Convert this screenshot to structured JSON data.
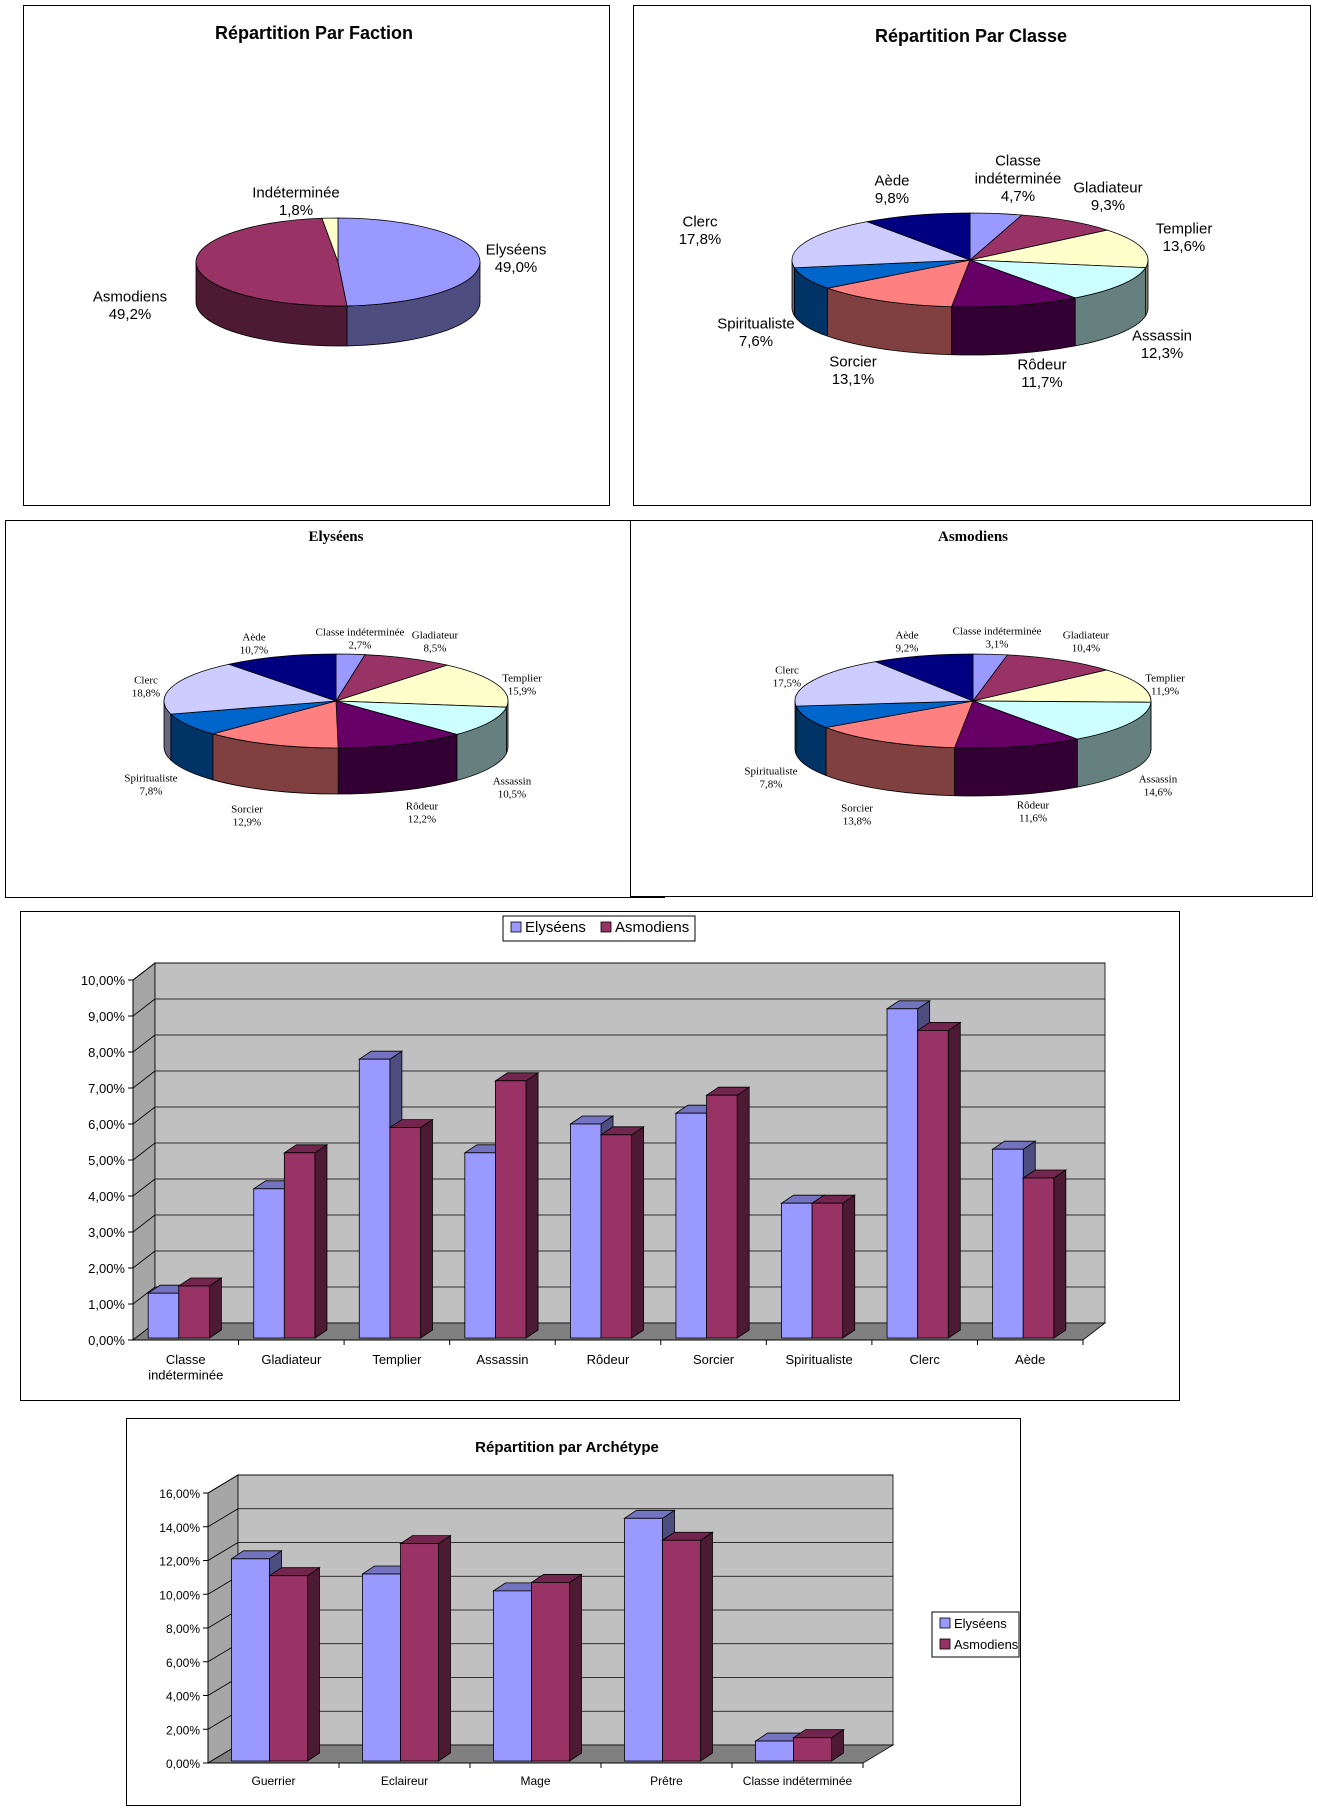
{
  "chart_data": [
    {
      "id": "faction",
      "type": "pie",
      "title": "Répartition Par Faction",
      "slices": [
        {
          "name": "Elyséens",
          "pct_label": "49,0%",
          "value": 49.0
        },
        {
          "name": "Asmodiens",
          "pct_label": "49,2%",
          "value": 49.2
        },
        {
          "name": "Indéterminée",
          "pct_label": "1,8%",
          "value": 1.8
        }
      ],
      "colors": [
        "#9999ff",
        "#993366",
        "#ffffcc"
      ]
    },
    {
      "id": "classe",
      "type": "pie",
      "title": "Répartition Par Classe",
      "slices": [
        {
          "name": "Classe indéterminée",
          "label_lines": [
            "Classe",
            "indéterminée"
          ],
          "pct_label": "4,7%",
          "value": 4.7
        },
        {
          "name": "Gladiateur",
          "pct_label": "9,3%",
          "value": 9.3
        },
        {
          "name": "Templier",
          "pct_label": "13,6%",
          "value": 13.6
        },
        {
          "name": "Assassin",
          "pct_label": "12,3%",
          "value": 12.3
        },
        {
          "name": "Rôdeur",
          "pct_label": "11,7%",
          "value": 11.7
        },
        {
          "name": "Sorcier",
          "pct_label": "13,1%",
          "value": 13.1
        },
        {
          "name": "Spiritualiste",
          "pct_label": "7,6%",
          "value": 7.6
        },
        {
          "name": "Clerc",
          "pct_label": "17,8%",
          "value": 17.8
        },
        {
          "name": "Aède",
          "pct_label": "9,8%",
          "value": 9.8
        }
      ]
    },
    {
      "id": "elyseens",
      "type": "pie",
      "title": "Elyséens",
      "slices": [
        {
          "name": "Classe indéterminée",
          "pct_label": "2,7%",
          "value": 2.7
        },
        {
          "name": "Gladiateur",
          "pct_label": "8,5%",
          "value": 8.5
        },
        {
          "name": "Templier",
          "pct_label": "15,9%",
          "value": 15.9
        },
        {
          "name": "Assassin",
          "pct_label": "10,5%",
          "value": 10.5
        },
        {
          "name": "Rôdeur",
          "pct_label": "12,2%",
          "value": 12.2
        },
        {
          "name": "Sorcier",
          "pct_label": "12,9%",
          "value": 12.9
        },
        {
          "name": "Spiritualiste",
          "pct_label": "7,8%",
          "value": 7.8
        },
        {
          "name": "Clerc",
          "pct_label": "18,8%",
          "value": 18.8
        },
        {
          "name": "Aède",
          "pct_label": "10,7%",
          "value": 10.7
        }
      ]
    },
    {
      "id": "asmodiens",
      "type": "pie",
      "title": "Asmodiens",
      "slices": [
        {
          "name": "Classe indéterminée",
          "pct_label": "3,1%",
          "value": 3.1
        },
        {
          "name": "Gladiateur",
          "pct_label": "10,4%",
          "value": 10.4
        },
        {
          "name": "Templier",
          "pct_label": "11,9%",
          "value": 11.9
        },
        {
          "name": "Assassin",
          "pct_label": "14,6%",
          "value": 14.6
        },
        {
          "name": "Rôdeur",
          "pct_label": "11,6%",
          "value": 11.6
        },
        {
          "name": "Sorcier",
          "pct_label": "13,8%",
          "value": 13.8
        },
        {
          "name": "Spiritualiste",
          "pct_label": "7,8%",
          "value": 7.8
        },
        {
          "name": "Clerc",
          "pct_label": "17,5%",
          "value": 17.5
        },
        {
          "name": "Aède",
          "pct_label": "9,2%",
          "value": 9.2
        }
      ]
    },
    {
      "id": "classes_bar",
      "type": "bar",
      "title": "",
      "categories": [
        [
          "Classe",
          "indéterminée"
        ],
        [
          "Gladiateur"
        ],
        [
          "Templier"
        ],
        [
          "Assassin"
        ],
        [
          "Rôdeur"
        ],
        [
          "Sorcier"
        ],
        [
          "Spiritualiste"
        ],
        [
          "Clerc"
        ],
        [
          "Aède"
        ]
      ],
      "series": [
        {
          "name": "Elyséens",
          "values": [
            1.3,
            4.2,
            7.8,
            5.2,
            6.0,
            6.3,
            3.8,
            9.2,
            5.3
          ]
        },
        {
          "name": "Asmodiens",
          "values": [
            1.5,
            5.2,
            5.9,
            7.2,
            5.7,
            6.8,
            3.8,
            8.6,
            4.5
          ]
        }
      ],
      "ylim": [
        0,
        10
      ],
      "yticks": [
        "0,00%",
        "1,00%",
        "2,00%",
        "3,00%",
        "4,00%",
        "5,00%",
        "6,00%",
        "7,00%",
        "8,00%",
        "9,00%",
        "10,00%"
      ],
      "legend": "top"
    },
    {
      "id": "archetype_bar",
      "type": "bar",
      "title": "Répartition par Archétype",
      "categories": [
        [
          "Guerrier"
        ],
        [
          "Eclaireur"
        ],
        [
          "Mage"
        ],
        [
          "Prêtre"
        ],
        [
          "Classe indéterminée"
        ]
      ],
      "series": [
        {
          "name": "Elyséens",
          "values": [
            12.1,
            11.2,
            10.2,
            14.5,
            1.3
          ]
        },
        {
          "name": "Asmodiens",
          "values": [
            11.1,
            13.0,
            10.7,
            13.2,
            1.5
          ]
        }
      ],
      "ylim": [
        0,
        16
      ],
      "yticks": [
        "0,00%",
        "2,00%",
        "4,00%",
        "6,00%",
        "8,00%",
        "10,00%",
        "12,00%",
        "14,00%",
        "16,00%"
      ],
      "legend": "right"
    }
  ],
  "class_colors": [
    "#9999ff",
    "#993366",
    "#ffffcc",
    "#ccffff",
    "#660066",
    "#ff8080",
    "#0066cc",
    "#ccccff",
    "#000080"
  ],
  "series_colors": [
    "#9999ff",
    "#993366"
  ]
}
